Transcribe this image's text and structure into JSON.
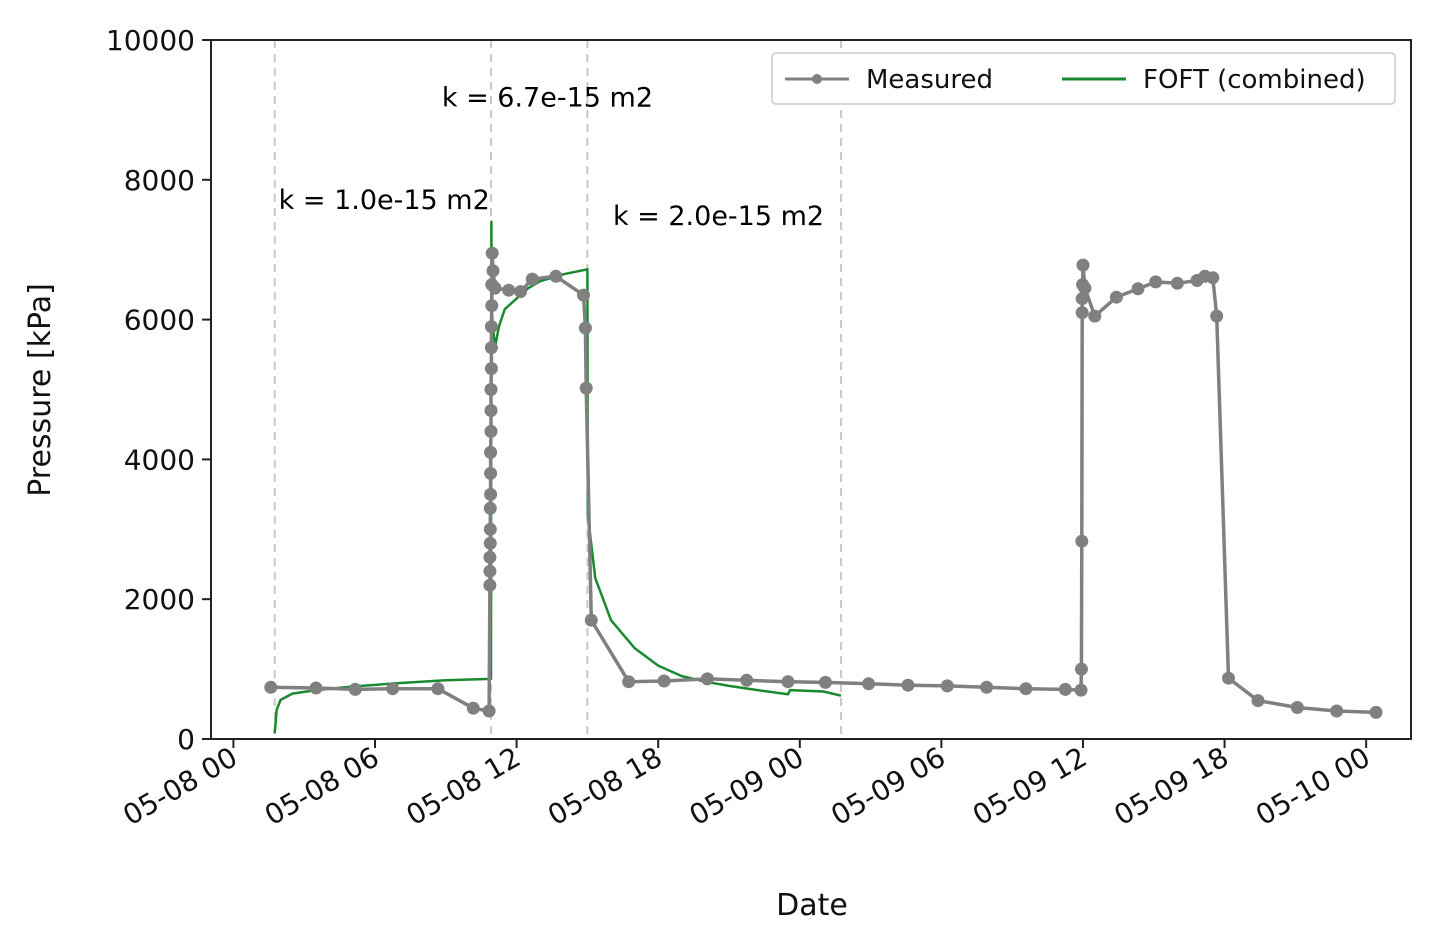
{
  "chart_data": {
    "type": "line",
    "xlabel": "Date",
    "ylabel": "Pressure [kPa]",
    "ylim": [
      0,
      10000
    ],
    "xlim": [
      "05-07 23:03",
      "05-10 01:54"
    ],
    "yticks": [
      0,
      2000,
      4000,
      6000,
      8000,
      10000
    ],
    "xticks": [
      "05-08 00",
      "05-08 06",
      "05-08 12",
      "05-08 18",
      "05-09 00",
      "05-09 06",
      "05-09 12",
      "05-09 18",
      "05-10 00"
    ],
    "grid": false,
    "legend": {
      "placement": "top-right",
      "entries": [
        "Measured",
        "FOFT (combined)"
      ]
    },
    "colors": {
      "measured": "#808080",
      "fit": "#1a8a2e",
      "vline": "#c8c8c8"
    },
    "vlines": [
      "05-08 01:45",
      "05-08 10:55",
      "05-08 15:00",
      "05-09 01:45"
    ],
    "annotations": [
      {
        "text": "k = 1.0e-15 m2",
        "x": "05-08 01:55",
        "y": 7580
      },
      {
        "text": "k = 6.7e-15 m2",
        "x": "05-08 08:50",
        "y": 9050
      },
      {
        "text": "k = 2.0e-15 m2",
        "x": "05-08 16:05",
        "y": 7350
      }
    ],
    "series": [
      {
        "name": "Measured",
        "style": "line-dot",
        "color": "#808080",
        "points": [
          [
            "05-08 01:35",
            740
          ],
          [
            "05-08 03:30",
            730
          ],
          [
            "05-08 05:10",
            710
          ],
          [
            "05-08 06:45",
            720
          ],
          [
            "05-08 08:40",
            720
          ],
          [
            "05-08 10:10",
            440
          ],
          [
            "05-08 10:50",
            400
          ],
          [
            "05-08 10:52",
            2200
          ],
          [
            "05-08 10:52",
            2400
          ],
          [
            "05-08 10:52",
            2600
          ],
          [
            "05-08 10:53",
            2800
          ],
          [
            "05-08 10:53",
            3000
          ],
          [
            "05-08 10:53",
            3300
          ],
          [
            "05-08 10:54",
            3500
          ],
          [
            "05-08 10:54",
            3800
          ],
          [
            "05-08 10:54",
            4100
          ],
          [
            "05-08 10:55",
            4400
          ],
          [
            "05-08 10:55",
            4700
          ],
          [
            "05-08 10:55",
            5000
          ],
          [
            "05-08 10:56",
            5300
          ],
          [
            "05-08 10:56",
            5600
          ],
          [
            "05-08 10:56",
            5900
          ],
          [
            "05-08 10:57",
            6200
          ],
          [
            "05-08 10:57",
            6500
          ],
          [
            "05-08 10:58",
            6950
          ],
          [
            "05-08 11:00",
            6700
          ],
          [
            "05-08 11:05",
            6450
          ],
          [
            "05-08 11:40",
            6420
          ],
          [
            "05-08 12:10",
            6400
          ],
          [
            "05-08 12:40",
            6580
          ],
          [
            "05-08 13:40",
            6620
          ],
          [
            "05-08 14:50",
            6350
          ],
          [
            "05-08 14:55",
            5880
          ],
          [
            "05-08 14:57",
            5020
          ],
          [
            "05-08 15:10",
            1700
          ],
          [
            "05-08 16:45",
            820
          ],
          [
            "05-08 18:15",
            830
          ],
          [
            "05-08 20:05",
            860
          ],
          [
            "05-08 21:45",
            840
          ],
          [
            "05-08 23:30",
            820
          ],
          [
            "05-09 01:05",
            810
          ],
          [
            "05-09 02:55",
            790
          ],
          [
            "05-09 04:35",
            770
          ],
          [
            "05-09 06:15",
            760
          ],
          [
            "05-09 07:55",
            740
          ],
          [
            "05-09 09:35",
            720
          ],
          [
            "05-09 11:15",
            710
          ],
          [
            "05-09 11:55",
            700
          ],
          [
            "05-09 11:56",
            1000
          ],
          [
            "05-09 11:57",
            2830
          ],
          [
            "05-09 11:58",
            6100
          ],
          [
            "05-09 11:58",
            6300
          ],
          [
            "05-09 11:59",
            6500
          ],
          [
            "05-09 12:00",
            6780
          ],
          [
            "05-09 12:05",
            6450
          ],
          [
            "05-09 12:30",
            6050
          ],
          [
            "05-09 13:25",
            6320
          ],
          [
            "05-09 14:20",
            6440
          ],
          [
            "05-09 15:05",
            6540
          ],
          [
            "05-09 16:00",
            6520
          ],
          [
            "05-09 16:50",
            6560
          ],
          [
            "05-09 17:10",
            6620
          ],
          [
            "05-09 17:30",
            6600
          ],
          [
            "05-09 17:40",
            6050
          ],
          [
            "05-09 18:10",
            870
          ],
          [
            "05-09 19:25",
            550
          ],
          [
            "05-09 21:05",
            450
          ],
          [
            "05-09 22:45",
            400
          ],
          [
            "05-10 00:25",
            380
          ]
        ]
      },
      {
        "name": "FOFT (combined)",
        "style": "line",
        "color": "#1a8a2e",
        "points": [
          [
            "05-08 01:45",
            80
          ],
          [
            "05-08 01:50",
            420
          ],
          [
            "05-08 02:00",
            560
          ],
          [
            "05-08 02:30",
            650
          ],
          [
            "05-08 03:30",
            700
          ],
          [
            "05-08 05:00",
            750
          ],
          [
            "05-08 07:00",
            800
          ],
          [
            "05-08 09:00",
            840
          ],
          [
            "05-08 10:55",
            860
          ],
          [
            "05-08 10:56",
            7400
          ],
          [
            "05-08 10:57",
            6100
          ],
          [
            "05-08 11:05",
            5600
          ],
          [
            "05-08 11:15",
            5900
          ],
          [
            "05-08 11:30",
            6150
          ],
          [
            "05-08 12:00",
            6300
          ],
          [
            "05-08 12:30",
            6450
          ],
          [
            "05-08 13:00",
            6550
          ],
          [
            "05-08 14:00",
            6650
          ],
          [
            "05-08 15:00",
            6720
          ],
          [
            "05-08 15:01",
            3200
          ],
          [
            "05-08 15:20",
            2300
          ],
          [
            "05-08 16:00",
            1700
          ],
          [
            "05-08 17:00",
            1300
          ],
          [
            "05-08 18:00",
            1050
          ],
          [
            "05-08 19:00",
            900
          ],
          [
            "05-08 20:00",
            820
          ],
          [
            "05-08 21:00",
            760
          ],
          [
            "05-08 22:00",
            710
          ],
          [
            "05-08 23:30",
            640
          ],
          [
            "05-08 23:35",
            700
          ],
          [
            "05-09 01:00",
            680
          ],
          [
            "05-09 01:45",
            620
          ]
        ]
      }
    ]
  }
}
